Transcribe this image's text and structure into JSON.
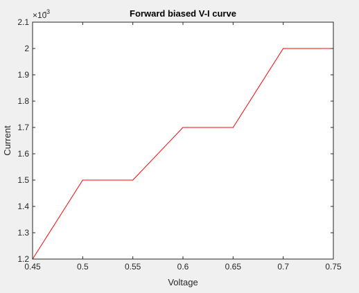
{
  "chart_data": {
    "type": "line",
    "title": "Forward biased V-I curve",
    "xlabel": "Voltage",
    "ylabel": "Current",
    "y_exponent_label": "×10",
    "y_exponent_power": "-3",
    "xlim": [
      0.45,
      0.75
    ],
    "ylim": [
      1.2,
      2.1
    ],
    "y_multiplier": 0.001,
    "x_ticks": [
      "0.45",
      "0.5",
      "0.55",
      "0.6",
      "0.65",
      "0.7",
      "0.75"
    ],
    "y_ticks": [
      "1.2",
      "1.3",
      "1.4",
      "1.5",
      "1.6",
      "1.7",
      "1.8",
      "1.9",
      "2",
      "2.1"
    ],
    "grid": false,
    "line_color": "#ff0000",
    "series": [
      {
        "x": [
          0.45,
          0.5,
          0.55,
          0.6,
          0.65,
          0.7,
          0.75
        ],
        "y": [
          1.2,
          1.5,
          1.5,
          1.7,
          1.7,
          2.0,
          2.0
        ]
      }
    ]
  }
}
